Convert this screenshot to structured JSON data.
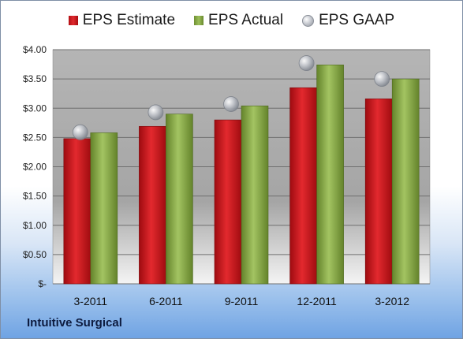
{
  "legend": {
    "estimate": "EPS Estimate",
    "actual": "EPS Actual",
    "gaap": "EPS GAAP"
  },
  "company": "Intuitive Surgical",
  "colors": {
    "estimate": "#d2191e",
    "actual": "#8db04a",
    "gaap": "#b8bcc4",
    "plot_background": "#9d9d9d"
  },
  "chart_data": {
    "type": "bar",
    "categories": [
      "3-2011",
      "6-2011",
      "9-2011",
      "12-2011",
      "3-2012"
    ],
    "series": [
      {
        "name": "EPS Estimate",
        "values": [
          2.48,
          2.69,
          2.8,
          3.35,
          3.16
        ]
      },
      {
        "name": "EPS Actual",
        "values": [
          2.58,
          2.9,
          3.04,
          3.74,
          3.5
        ]
      },
      {
        "name": "EPS GAAP",
        "values": [
          2.59,
          2.93,
          3.07,
          3.77,
          3.5
        ],
        "marker": "circle"
      }
    ],
    "ylim": [
      0,
      4
    ],
    "yticks": [
      0,
      0.5,
      1,
      1.5,
      2,
      2.5,
      3,
      3.5,
      4
    ],
    "ytick_labels": [
      "$-",
      "$0.50",
      "$1.00",
      "$1.50",
      "$2.00",
      "$2.50",
      "$3.00",
      "$3.50",
      "$4.00"
    ],
    "grid": true,
    "legend_position": "top"
  }
}
